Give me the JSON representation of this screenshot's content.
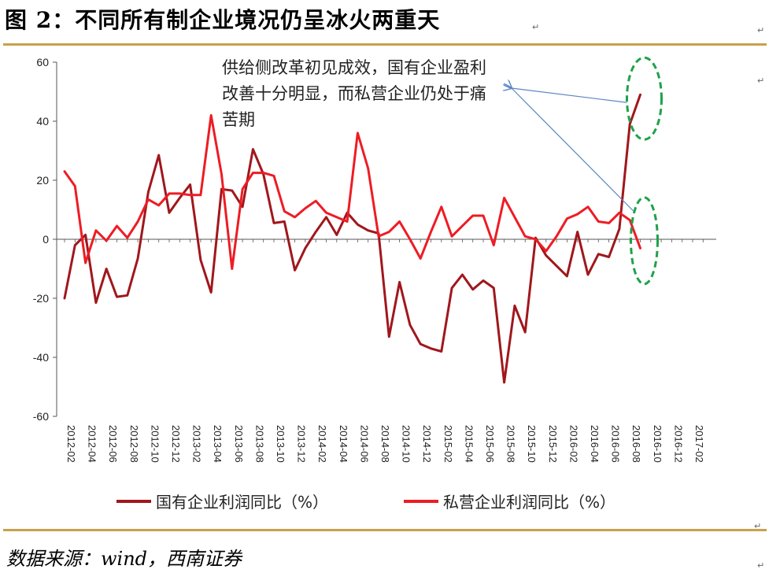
{
  "header": {
    "title": "图 2：不同所有制企业境况仍呈冰火两重天"
  },
  "annotation": {
    "text": "供给侧改革初见成效，国有企业盈利改善十分明显，而私营企业仍处于痛苦期"
  },
  "footer": {
    "source": "数据来源：wind，西南证券"
  },
  "colors": {
    "state_owned": "#a0171c",
    "private": "#ee1c24",
    "rule": "#c9a14a",
    "highlight_ellipse": "#1ea24a",
    "arrow": "#5b86c4"
  },
  "chart_data": {
    "type": "line",
    "title": "",
    "xlabel": "",
    "ylabel": "",
    "ylim": [
      -60,
      60
    ],
    "yticks": [
      60,
      40,
      20,
      0,
      -20,
      -40,
      -60
    ],
    "x_tick_labels": [
      "2012-02",
      "2012-04",
      "2012-06",
      "2012-08",
      "2012-10",
      "2012-12",
      "2013-02",
      "2013-04",
      "2013-06",
      "2013-08",
      "2013-10",
      "2013-12",
      "2014-02",
      "2014-04",
      "2014-06",
      "2014-08",
      "2014-10",
      "2014-12",
      "2015-02",
      "2015-04",
      "2015-06",
      "2015-08",
      "2015-10",
      "2015-12",
      "2016-02",
      "2016-04",
      "2016-06",
      "2016-08",
      "2016-10",
      "2016-12",
      "2017-02"
    ],
    "legend": {
      "position": "bottom"
    },
    "series": [
      {
        "name": "国有企业利润同比（%）",
        "color": "#a0171c",
        "x": [
          "2012-02",
          "2012-03",
          "2012-04",
          "2012-05",
          "2012-06",
          "2012-07",
          "2012-08",
          "2012-09",
          "2012-10",
          "2012-11",
          "2012-12",
          "2013-01",
          "2013-02",
          "2013-03",
          "2013-04",
          "2013-05",
          "2013-06",
          "2013-07",
          "2013-08",
          "2013-09",
          "2013-10",
          "2013-11",
          "2013-12",
          "2014-01",
          "2014-02",
          "2014-03",
          "2014-04",
          "2014-05",
          "2014-06",
          "2014-07",
          "2014-08",
          "2014-09",
          "2014-10",
          "2014-11",
          "2014-12",
          "2015-01",
          "2015-02",
          "2015-03",
          "2015-04",
          "2015-05",
          "2015-06",
          "2015-07",
          "2015-08",
          "2015-09",
          "2015-10",
          "2015-11",
          "2015-12",
          "2016-01",
          "2016-02",
          "2016-03",
          "2016-04",
          "2016-05",
          "2016-06",
          "2016-07",
          "2016-08",
          "2016-09",
          "2016-10"
        ],
        "values": [
          -20,
          -2,
          1.5,
          -21.5,
          -10,
          -19.5,
          -19,
          -6.5,
          16,
          28.5,
          9,
          14,
          18.5,
          -7,
          -18,
          17,
          16.5,
          11,
          30.5,
          22,
          5.5,
          6,
          -10.5,
          -3,
          2.5,
          7.5,
          1.5,
          9,
          5,
          3,
          2,
          -33,
          -14.5,
          -29,
          -35.5,
          -37,
          -38,
          -16.5,
          -12,
          -17,
          -14,
          -16.5,
          -48.5,
          -22.5,
          -31.5,
          0.5,
          -5.5,
          -9,
          -12.5,
          2.5,
          -12,
          -5,
          -6,
          3.5,
          39,
          49,
          null
        ]
      },
      {
        "name": "私营企业利润同比（%）",
        "color": "#ee1c24",
        "x": [
          "2012-02",
          "2012-03",
          "2012-04",
          "2012-05",
          "2012-06",
          "2012-07",
          "2012-08",
          "2012-09",
          "2012-10",
          "2012-11",
          "2012-12",
          "2013-01",
          "2013-02",
          "2013-03",
          "2013-04",
          "2013-05",
          "2013-06",
          "2013-07",
          "2013-08",
          "2013-09",
          "2013-10",
          "2013-11",
          "2013-12",
          "2014-01",
          "2014-02",
          "2014-03",
          "2014-04",
          "2014-05",
          "2014-06",
          "2014-07",
          "2014-08",
          "2014-09",
          "2014-10",
          "2014-11",
          "2014-12",
          "2015-01",
          "2015-02",
          "2015-03",
          "2015-04",
          "2015-05",
          "2015-06",
          "2015-07",
          "2015-08",
          "2015-09",
          "2015-10",
          "2015-11",
          "2015-12",
          "2016-01",
          "2016-02",
          "2016-03",
          "2016-04",
          "2016-05",
          "2016-06",
          "2016-07",
          "2016-08",
          "2016-09",
          "2016-10"
        ],
        "values": [
          23,
          18,
          -8,
          3,
          -0.5,
          4.5,
          0.5,
          6,
          13.5,
          11.5,
          15.5,
          15.5,
          15,
          15,
          42,
          22,
          -10,
          17,
          22.5,
          22.5,
          21.5,
          9.5,
          7.5,
          10.5,
          13,
          9,
          7.5,
          6,
          36,
          24,
          1,
          2.5,
          6,
          0,
          -6.5,
          2.5,
          11,
          1,
          4.5,
          8,
          8,
          -2,
          14,
          7.5,
          1,
          0,
          -4,
          1,
          7,
          8.5,
          11,
          6,
          5.5,
          9,
          6.5,
          -3,
          null
        ]
      }
    ],
    "annotations": [
      {
        "text": "供给侧改革初见成效，国有企业盈利改善十分明显，而私营企业仍处于痛苦期",
        "points_to": [
          "2016-09 国有",
          "2016-09 私营"
        ]
      }
    ]
  }
}
